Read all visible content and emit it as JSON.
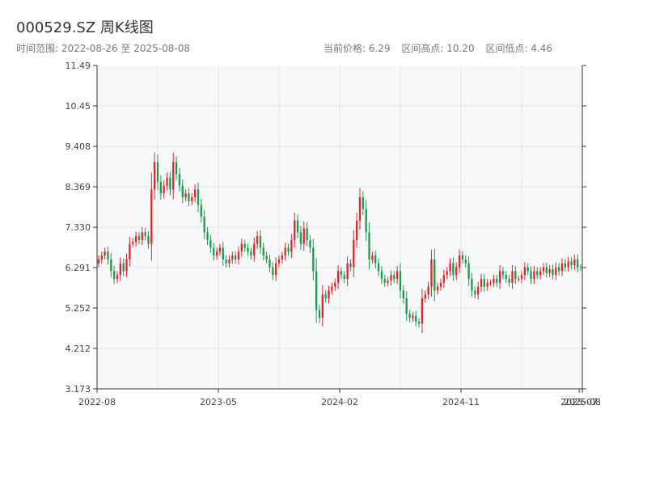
{
  "header": {
    "title": "000529.SZ 周K线图",
    "range_text": "时间范围: 2022-08-26 至 2025-08-08",
    "current_text": "当前价格: 6.29",
    "high_text": "区间高点: 10.20",
    "low_text": "区间低点: 4.46"
  },
  "colors": {
    "up": "#e0262a",
    "down": "#1e9a4a",
    "plot_bg": "#f7f8fa",
    "grid": "#e2e5ea",
    "axis": "#333333"
  },
  "chart_data": {
    "type": "candlestick",
    "title": "000529.SZ 周K线图",
    "xlabel": "",
    "ylabel": "",
    "ylim": [
      3.173,
      11.49
    ],
    "y_ticks": [
      "11.49",
      "10.45",
      "9.408",
      "8.369",
      "7.330",
      "6.291",
      "5.252",
      "4.212",
      "3.173"
    ],
    "x_ticks": [
      "2022-08",
      "2023-05",
      "2024-02",
      "2024-11",
      "2025-07",
      "2025-08"
    ],
    "x_tick_positions": [
      0,
      39,
      78,
      117,
      155,
      156
    ],
    "grid": true,
    "close_series": [
      6.5,
      6.6,
      6.7,
      6.5,
      6.2,
      6.0,
      6.1,
      6.4,
      6.2,
      6.5,
      6.9,
      6.95,
      7.1,
      7.0,
      7.2,
      7.1,
      6.9,
      8.3,
      9.0,
      8.5,
      8.2,
      8.4,
      8.6,
      8.3,
      9.0,
      8.7,
      8.4,
      8.1,
      8.2,
      8.0,
      8.1,
      8.3,
      7.9,
      7.6,
      7.2,
      7.0,
      6.8,
      6.6,
      6.7,
      6.8,
      6.5,
      6.4,
      6.5,
      6.6,
      6.5,
      6.7,
      6.9,
      6.8,
      6.7,
      6.6,
      6.9,
      7.1,
      6.8,
      6.6,
      6.5,
      6.3,
      6.1,
      6.4,
      6.5,
      6.6,
      6.8,
      6.7,
      7.0,
      7.5,
      7.2,
      6.9,
      7.3,
      7.0,
      6.8,
      6.2,
      5.2,
      5.0,
      5.6,
      5.5,
      5.7,
      5.8,
      5.9,
      6.2,
      6.1,
      6.0,
      6.4,
      6.3,
      7.0,
      7.5,
      8.1,
      7.8,
      7.2,
      6.5,
      6.6,
      6.4,
      6.2,
      6.0,
      5.9,
      5.95,
      6.1,
      6.0,
      6.2,
      5.7,
      5.5,
      5.1,
      5.0,
      5.05,
      4.9,
      4.85,
      5.5,
      5.6,
      5.8,
      6.5,
      5.7,
      5.8,
      5.9,
      6.1,
      6.2,
      6.4,
      6.1,
      6.3,
      6.6,
      6.5,
      6.4,
      6.0,
      5.7,
      5.6,
      5.8,
      6.0,
      5.8,
      5.9,
      5.9,
      6.0,
      5.9,
      6.2,
      6.1,
      6.0,
      5.9,
      6.2,
      6.0,
      6.0,
      6.1,
      6.3,
      6.2,
      6.0,
      6.2,
      6.1,
      6.2,
      6.3,
      6.15,
      6.25,
      6.1,
      6.3,
      6.2,
      6.4,
      6.3,
      6.45,
      6.35,
      6.5,
      6.3,
      6.29
    ]
  }
}
